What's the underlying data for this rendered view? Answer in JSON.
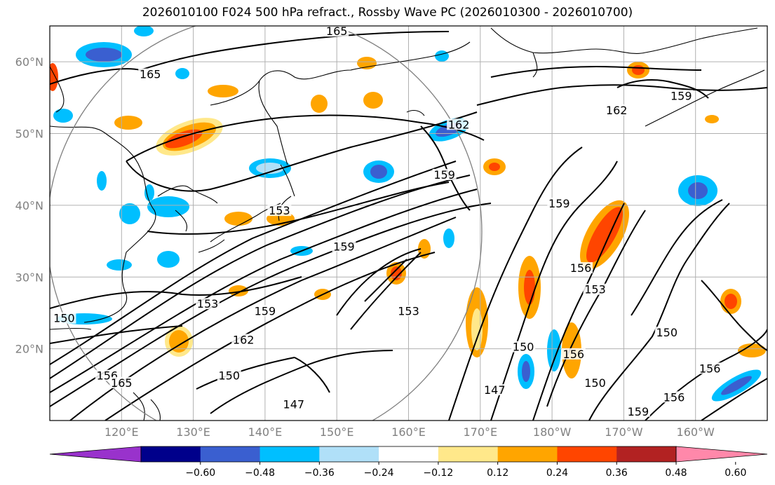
{
  "title": "2026010100 F024 500 hPa refract., Rossby Wave PC (2026010300 - 2026010700)",
  "map": {
    "lon_labels": [
      "120°E",
      "130°E",
      "140°E",
      "150°E",
      "160°E",
      "170°E",
      "180°W",
      "170°W",
      "160°W"
    ],
    "lat_labels": [
      "60°N",
      "50°N",
      "40°N",
      "30°N",
      "20°N"
    ],
    "contour_levels": [
      "147",
      "150",
      "153",
      "156",
      "159",
      "162",
      "165"
    ],
    "contour_labels": [
      {
        "text": "165",
        "lon": 150,
        "lat": 64
      },
      {
        "text": "165",
        "lon": 124,
        "lat": 58
      },
      {
        "text": "162",
        "lon": -171,
        "lat": 53
      },
      {
        "text": "159",
        "lon": -162,
        "lat": 55
      },
      {
        "text": "162",
        "lon": 167,
        "lat": 51
      },
      {
        "text": "159",
        "lon": 165,
        "lat": 44
      },
      {
        "text": "153",
        "lon": 142,
        "lat": 39
      },
      {
        "text": "159",
        "lon": 181,
        "lat": 40
      },
      {
        "text": "159",
        "lon": 151,
        "lat": 34
      },
      {
        "text": "156",
        "lon": 184,
        "lat": 31
      },
      {
        "text": "153",
        "lon": -174,
        "lat": 28
      },
      {
        "text": "153",
        "lon": 132,
        "lat": 26
      },
      {
        "text": "159",
        "lon": 140,
        "lat": 25
      },
      {
        "text": "153",
        "lon": 160,
        "lat": 25
      },
      {
        "text": "162",
        "lon": 137,
        "lat": 21
      },
      {
        "text": "150",
        "lon": 112,
        "lat": 24
      },
      {
        "text": "150",
        "lon": 176,
        "lat": 20
      },
      {
        "text": "150",
        "lon": -164,
        "lat": 22
      },
      {
        "text": "156",
        "lon": 183,
        "lat": 19
      },
      {
        "text": "150",
        "lon": 135,
        "lat": 16
      },
      {
        "text": "156",
        "lon": 118,
        "lat": 16
      },
      {
        "text": "165",
        "lon": 120,
        "lat": 15
      },
      {
        "text": "150",
        "lon": -174,
        "lat": 15
      },
      {
        "text": "156",
        "lon": -163,
        "lat": 13
      },
      {
        "text": "147",
        "lon": 144,
        "lat": 12
      },
      {
        "text": "147",
        "lon": 172,
        "lat": 14
      },
      {
        "text": "159",
        "lon": -168,
        "lat": 11
      },
      {
        "text": "156",
        "lon": -158,
        "lat": 17
      }
    ]
  },
  "colorbar": {
    "colors": [
      "#9932cc",
      "#00008b",
      "#3a5fd0",
      "#00bfff",
      "#b0e0f8",
      "#ffffff",
      "#ffe88a",
      "#ffa500",
      "#ff4500",
      "#b22222",
      "#ff88aa"
    ],
    "tick_labels": [
      "−0.60",
      "−0.48",
      "−0.36",
      "−0.24",
      "−0.12",
      "0.12",
      "0.24",
      "0.36",
      "0.48",
      "0.60"
    ]
  }
}
